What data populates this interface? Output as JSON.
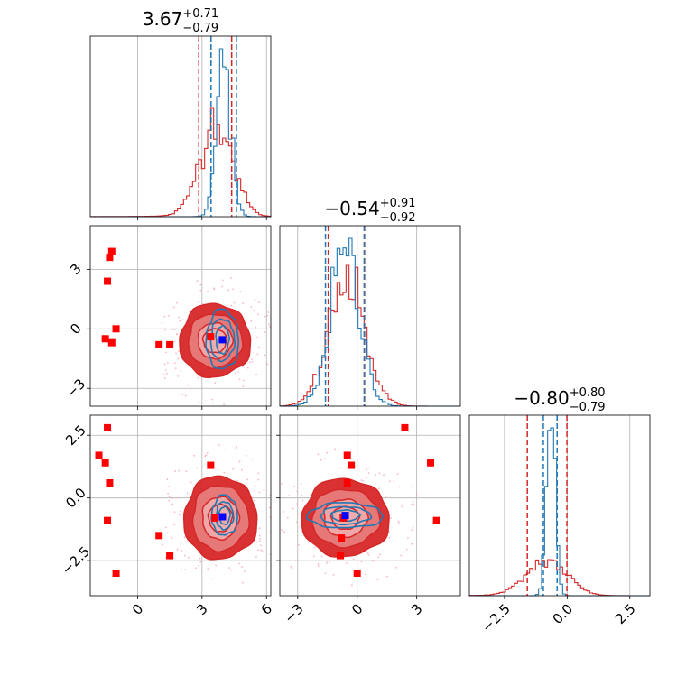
{
  "chart_data": {
    "type": "corner",
    "colors": {
      "red": "#d62728",
      "red_fill_outer": "#f2b3b3",
      "red_fill_mid": "#e88080",
      "red_fill_inner": "#d62728",
      "blue": "#1f77b4",
      "marker_red": "#ff0000",
      "marker_blue": "#0000ff",
      "grid": "#b0b0b0"
    },
    "parameters": [
      {
        "title_value": "3.67",
        "title_plus": "+0.71",
        "title_minus": "−0.79",
        "range": [
          -2.2,
          6.2
        ],
        "ticks": [
          {
            "v": 0,
            "label": "0"
          },
          {
            "v": 3,
            "label": "3"
          },
          {
            "v": 6,
            "label": "6"
          }
        ],
        "quantiles_red": [
          2.85,
          4.38
        ],
        "quantiles_blue": [
          3.42,
          4.6
        ]
      },
      {
        "title_value": "−0.54",
        "title_plus": "+0.91",
        "title_minus": "−0.92",
        "range": [
          -3.9,
          5.2
        ],
        "ticks": [
          {
            "v": -3,
            "label": "−3"
          },
          {
            "v": 0,
            "label": "0"
          },
          {
            "v": 3,
            "label": "3"
          }
        ],
        "quantiles_red": [
          -1.46,
          0.37
        ],
        "quantiles_blue": [
          -1.6,
          0.35
        ]
      },
      {
        "title_value": "−0.80",
        "title_plus": "+0.80",
        "title_minus": "−0.79",
        "range": [
          -3.9,
          3.3
        ],
        "ticks": [
          {
            "v": -2.5,
            "label": "−2.5"
          },
          {
            "v": 0,
            "label": "0.0"
          },
          {
            "v": 2.5,
            "label": "2.5"
          }
        ],
        "quantiles_red": [
          -1.59,
          -0.01
        ],
        "quantiles_blue": [
          -0.95,
          -0.4
        ]
      }
    ],
    "histograms": {
      "red": [
        {
          "mean": 3.67,
          "sd": 0.75,
          "tail": [
            0.02,
            -0.8
          ]
        },
        {
          "mean": -0.54,
          "sd": 0.92,
          "tail": [
            0,
            0
          ]
        },
        {
          "mean": -0.8,
          "sd": 0.8,
          "tail": [
            0.03,
            -0.8
          ]
        }
      ],
      "blue": [
        {
          "mean": 4.0,
          "sd": 0.33
        },
        {
          "mean": -0.62,
          "sd": 0.75
        },
        {
          "mean": -0.65,
          "sd": 0.17
        }
      ]
    },
    "contours": {
      "p10": {
        "red": {
          "cx": 3.6,
          "cy": -0.6,
          "rx": [
            0.55,
            0.8,
            1.25,
            1.65
          ],
          "ry": [
            0.6,
            0.9,
            1.35,
            1.85
          ]
        },
        "blue": {
          "cx": 3.95,
          "cy": -0.55,
          "rx": [
            0.3,
            0.55,
            0.75
          ],
          "ry": [
            0.7,
            1.05,
            1.5
          ]
        }
      },
      "p20": {
        "red": {
          "cx": 3.85,
          "cy": -0.8,
          "rx": [
            0.55,
            0.85,
            1.3,
            1.7
          ],
          "ry": [
            0.55,
            0.85,
            1.3,
            1.65
          ]
        },
        "blue": {
          "cx": 4.05,
          "cy": -0.7,
          "rx": [
            0.25,
            0.4,
            0.6
          ],
          "ry": [
            0.35,
            0.55,
            0.8
          ]
        }
      },
      "p21": {
        "red": {
          "cx": -0.6,
          "cy": -0.8,
          "rx": [
            0.7,
            1.1,
            1.7,
            2.2
          ],
          "ry": [
            0.45,
            0.75,
            1.15,
            1.55
          ]
        },
        "blue": {
          "cx": -0.6,
          "cy": -0.7,
          "rx": [
            0.7,
            1.25,
            1.9
          ],
          "ry": [
            0.22,
            0.35,
            0.5
          ]
        }
      }
    },
    "markers": {
      "p10": {
        "red": [
          [
            -1.5,
            -0.5
          ],
          [
            -1.2,
            -0.7
          ],
          [
            -1.3,
            3.6
          ],
          [
            -1.2,
            3.9
          ],
          [
            -1.4,
            2.4
          ],
          [
            -1.0,
            0.0
          ],
          [
            1.0,
            -0.8
          ],
          [
            1.5,
            -0.8
          ],
          [
            3.4,
            -0.4
          ]
        ],
        "blue": [
          [
            3.95,
            -0.55
          ]
        ]
      },
      "p20": {
        "red": [
          [
            -1.4,
            2.8
          ],
          [
            -1.8,
            1.7
          ],
          [
            -1.5,
            1.4
          ],
          [
            -1.3,
            0.6
          ],
          [
            -1.4,
            -0.9
          ],
          [
            -1.0,
            -3.0
          ],
          [
            1.0,
            -1.5
          ],
          [
            1.5,
            -2.3
          ],
          [
            3.4,
            1.3
          ],
          [
            3.6,
            -0.8
          ]
        ],
        "blue": [
          [
            3.95,
            -0.75
          ]
        ]
      },
      "p21": {
        "red": [
          [
            2.4,
            2.8
          ],
          [
            3.7,
            1.4
          ],
          [
            4.0,
            -0.9
          ],
          [
            -0.5,
            0.6
          ],
          [
            -0.5,
            1.7
          ],
          [
            -0.3,
            1.3
          ],
          [
            -0.85,
            -2.3
          ],
          [
            -0.8,
            -1.6
          ],
          [
            0.0,
            -3.0
          ],
          [
            -0.7,
            -0.8
          ]
        ],
        "blue": [
          [
            -0.6,
            -0.7
          ]
        ]
      }
    }
  }
}
